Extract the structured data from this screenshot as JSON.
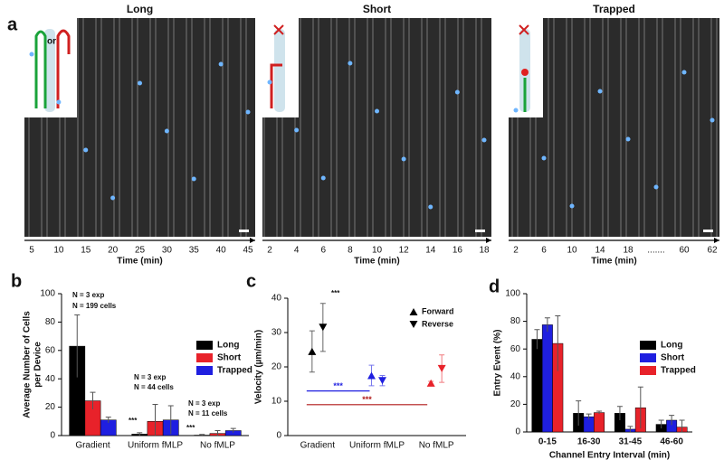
{
  "panel_a": {
    "label": "a",
    "images": [
      {
        "title": "Long",
        "inset_text": "or",
        "ticks": [
          "5",
          "10",
          "15",
          "20",
          "25",
          "30",
          "35",
          "40",
          "45"
        ],
        "xlabel": "Time (min)"
      },
      {
        "title": "Short",
        "ticks": [
          "2",
          "4",
          "6",
          "8",
          "10",
          "12",
          "14",
          "16",
          "18"
        ],
        "xlabel": "Time (min)"
      },
      {
        "title": "Trapped",
        "ticks": [
          "2",
          "6",
          "10",
          "14",
          "18",
          ".......",
          "60",
          "62"
        ],
        "xlabel": "Time (min)"
      }
    ]
  },
  "chart_data": [
    {
      "panel_label": "b",
      "type": "bar",
      "categories": [
        "Gradient",
        "Uniform fMLP",
        "No fMLP"
      ],
      "ylabel": [
        "Average Number of Cells",
        "per Device"
      ],
      "ylim": [
        0,
        100
      ],
      "yticks": [
        0,
        20,
        40,
        60,
        80,
        100
      ],
      "legend": "upper right",
      "series": [
        {
          "name": "Long",
          "color": "#000000",
          "values": [
            63,
            1,
            0.3
          ],
          "errors": [
            22,
            1,
            0.5
          ]
        },
        {
          "name": "Short",
          "color": "#e8222a",
          "values": [
            24.5,
            10,
            1.5
          ],
          "errors": [
            6,
            12,
            2
          ]
        },
        {
          "name": "Trapped",
          "color": "#1f1fe0",
          "values": [
            11,
            11,
            3.5
          ],
          "errors": [
            2,
            10,
            1.5
          ]
        }
      ],
      "annotations": [
        "N = 3 exp",
        "N = 199 cells",
        "N = 3 exp",
        "N = 44 cells",
        "N = 3 exp",
        "N = 11 cells",
        "***",
        "***"
      ]
    },
    {
      "panel_label": "c",
      "type": "scatter",
      "categories": [
        "Gradient",
        "Uniform fMLP",
        "No fMLP"
      ],
      "ylabel": [
        "Velocity (µm/min)"
      ],
      "ylim": [
        0,
        40
      ],
      "yticks": [
        0,
        10,
        20,
        30,
        40
      ],
      "legend": "upper right",
      "point_colors": [
        "#000000",
        "#1f1fe0",
        "#e8222a"
      ],
      "series": [
        {
          "name": "Forward",
          "marker": "triangle-up",
          "values": [
            24.5,
            17.5,
            15.3
          ],
          "errors": [
            6,
            3,
            0.5
          ]
        },
        {
          "name": "Reverse",
          "marker": "triangle-down",
          "values": [
            31.5,
            16,
            19.5
          ],
          "errors": [
            7,
            1.5,
            4
          ]
        }
      ],
      "annotations": [
        "***"
      ],
      "brackets": [
        {
          "label": "***",
          "y": 13,
          "color": "#1f1fe0"
        },
        {
          "label": "***",
          "y": 9,
          "color": "#b01818"
        }
      ]
    },
    {
      "panel_label": "d",
      "type": "bar",
      "categories": [
        "0-15",
        "16-30",
        "31-45",
        "46-60"
      ],
      "xlabel": "Channel Entry Interval (min)",
      "ylabel": [
        "Entry Event (%)"
      ],
      "ylim": [
        0,
        100
      ],
      "yticks": [
        0,
        20,
        40,
        60,
        80,
        100
      ],
      "legend": "upper right",
      "series": [
        {
          "name": "Long",
          "color": "#000000",
          "values": [
            67,
            13.5,
            13.5,
            5.5
          ],
          "errors": [
            7,
            9,
            5,
            3
          ]
        },
        {
          "name": "Short",
          "color": "#1f1fe0",
          "values": [
            77.5,
            11,
            2,
            8.5
          ],
          "errors": [
            5,
            2,
            2,
            3.5
          ]
        },
        {
          "name": "Trapped",
          "color": "#e8222a",
          "values": [
            64,
            14,
            17.5,
            3.5
          ],
          "errors": [
            20,
            1,
            15,
            5
          ]
        }
      ]
    }
  ]
}
